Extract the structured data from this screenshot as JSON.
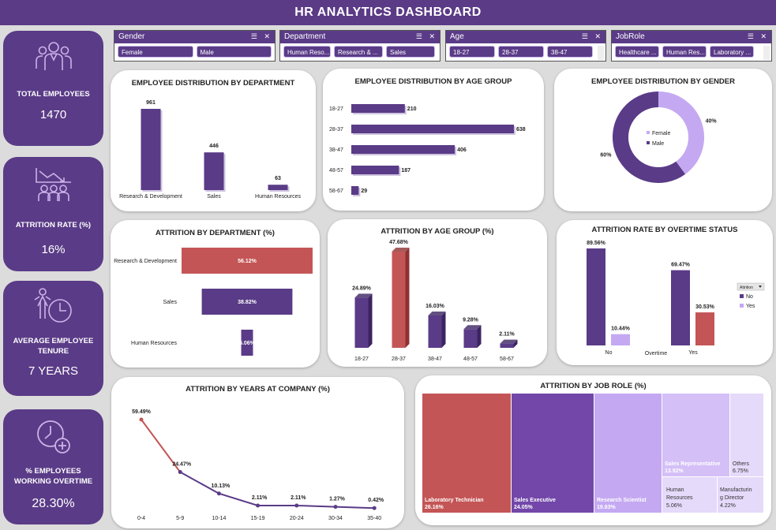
{
  "header": {
    "title": "HR ANALYTICS DASHBOARD"
  },
  "colors": {
    "primary": "#5a3b87",
    "accent_red": "#c45556",
    "light": "#c4a9f2",
    "lighter": "#e5dafa"
  },
  "kpis": [
    {
      "label": "TOTAL EMPLOYEES",
      "value": "1470",
      "icon": "group-people-icon"
    },
    {
      "label": "ATTRITION RATE (%)",
      "value": "16%",
      "icon": "declining-staff-icon"
    },
    {
      "label": "AVERAGE EMPLOYEE TENURE",
      "value": "7 YEARS",
      "icon": "person-clock-icon"
    },
    {
      "label": "% EMPLOYEES WORKING OVERTIME",
      "value": "28.30%",
      "icon": "clock-plus-icon"
    }
  ],
  "slicers": [
    {
      "name": "Gender",
      "items": [
        "Female",
        "Male"
      ]
    },
    {
      "name": "Department",
      "items": [
        "Human Reso...",
        "Research & ...",
        "Sales"
      ]
    },
    {
      "name": "Age",
      "items": [
        "18-27",
        "28-37",
        "38-47"
      ]
    },
    {
      "name": "JobRole",
      "items": [
        "Healthcare ...",
        "Human Res...",
        "Laboratory ..."
      ]
    }
  ],
  "charts": {
    "dept": {
      "title": "EMPLOYEE DISTRIBUTION BY DEPARTMENT",
      "chart_data": {
        "type": "bar",
        "categories": [
          "Research & Development",
          "Sales",
          "Human Resources"
        ],
        "values": [
          961,
          446,
          63
        ]
      }
    },
    "age": {
      "title": "EMPLOYEE DISTRIBUTION BY AGE GROUP",
      "chart_data": {
        "type": "bar",
        "orientation": "horizontal",
        "categories": [
          "18-27",
          "28-37",
          "38-47",
          "48-57",
          "58-67"
        ],
        "values": [
          210,
          638,
          406,
          187,
          29
        ]
      }
    },
    "gender": {
      "title": "EMPLOYEE DISTRIBUTION BY GENDER",
      "chart_data": {
        "type": "pie",
        "style": "donut",
        "labels": [
          "Female",
          "Male"
        ],
        "values": [
          40,
          60
        ],
        "value_labels": [
          "40%",
          "60%"
        ]
      }
    },
    "attr_dept": {
      "title": "ATTRITION BY DEPARTMENT (%)",
      "chart_data": {
        "type": "bar",
        "orientation": "horizontal",
        "style": "funnel",
        "categories": [
          "Research & Development",
          "Sales",
          "Human Resources"
        ],
        "values": [
          56.12,
          38.82,
          5.06
        ],
        "value_labels": [
          "56.12%",
          "38.82%",
          "5.06%"
        ]
      }
    },
    "attr_age": {
      "title": "ATTRITION BY AGE GROUP (%)",
      "chart_data": {
        "type": "bar",
        "style": "3d",
        "categories": [
          "18-27",
          "28-37",
          "38-47",
          "48-57",
          "58-67"
        ],
        "values": [
          24.89,
          47.68,
          16.03,
          9.28,
          2.11
        ],
        "value_labels": [
          "24.89%",
          "47.68%",
          "16.03%",
          "9.28%",
          "2.11%"
        ]
      }
    },
    "overtime": {
      "title": "ATTRITION RATE BY OVERTIME STATUS",
      "chart_data": {
        "type": "bar",
        "categories": [
          "No",
          "Yes"
        ],
        "xlabel": "Overtime",
        "legend_title": "Attrition",
        "series": [
          {
            "name": "No",
            "values": [
              89.56,
              69.47
            ],
            "labels": [
              "89.56%",
              "69.47%"
            ]
          },
          {
            "name": "Yes",
            "values": [
              10.44,
              30.53
            ],
            "labels": [
              "10.44%",
              "30.53%"
            ]
          }
        ]
      }
    },
    "years": {
      "title": "ATTRITION BY YEARS AT COMPANY (%)",
      "chart_data": {
        "type": "line",
        "categories": [
          "0-4",
          "5-9",
          "10-14",
          "15-19",
          "20-24",
          "30-34",
          "35-40"
        ],
        "values": [
          59.49,
          24.47,
          10.13,
          2.11,
          2.11,
          1.27,
          0.42
        ],
        "value_labels": [
          "59.49%",
          "24.47%",
          "10.13%",
          "2.11%",
          "2.11%",
          "1.27%",
          "0.42%"
        ]
      }
    },
    "jobrole": {
      "title": "ATTRITION BY JOB ROLE (%)",
      "chart_data": {
        "type": "treemap",
        "items": [
          {
            "name": "Laboratory Technician",
            "value": "26.16%"
          },
          {
            "name": "Sales Executive",
            "value": "24.05%"
          },
          {
            "name": "Research Scientist",
            "value": "19.83%"
          },
          {
            "name": "Sales Representative",
            "value": "13.92%"
          },
          {
            "name": "Others",
            "value": "6.75%"
          },
          {
            "name": "Human Resources",
            "value": "5.06%"
          },
          {
            "name": "Manufacturing Director",
            "value": "4.22%"
          }
        ]
      }
    }
  }
}
